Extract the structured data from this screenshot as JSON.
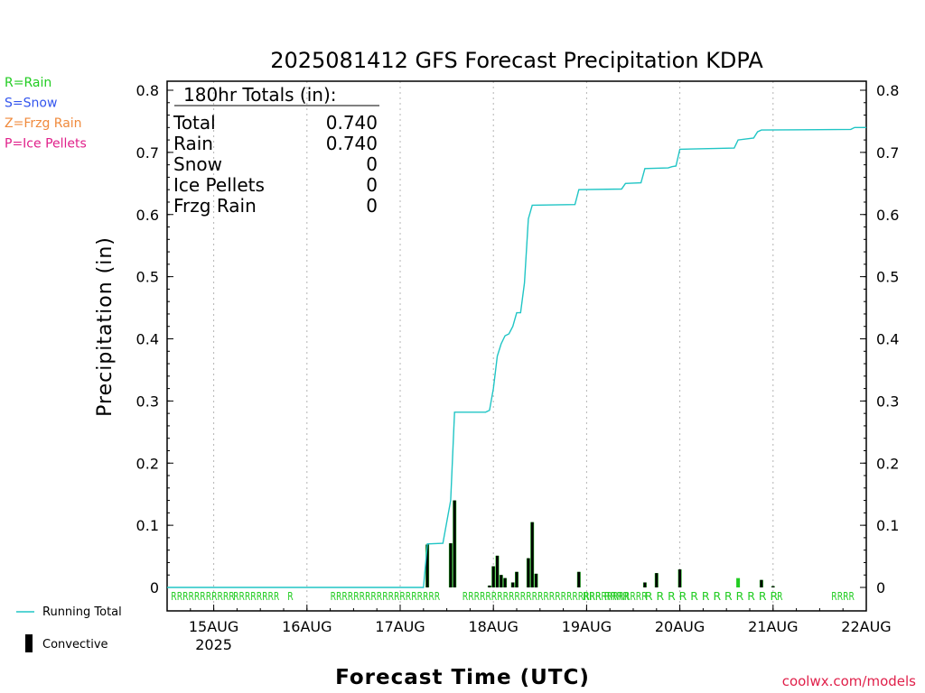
{
  "chart_data": {
    "type": "bar+line",
    "title": "2025081412 GFS Forecast Precipitation KDPA",
    "ylabel": "Precipitation (in)",
    "xlabel": "Forecast Time (UTC)",
    "ylim": [
      0,
      0.8
    ],
    "yticks": [
      0,
      0.1,
      0.2,
      0.3,
      0.4,
      0.5,
      0.6,
      0.7,
      0.8
    ],
    "ytick_labels": [
      "0",
      "0.1",
      "0.2",
      "0.3",
      "0.4",
      "0.5",
      "0.6",
      "0.7",
      "0.8"
    ],
    "x_start": "2025-08-14 12Z",
    "x_end": "2025-08-22 00Z",
    "xticks": [
      {
        "t": "2025-08-15 00Z",
        "label": "15AUG",
        "sub": "2025"
      },
      {
        "t": "2025-08-16 00Z",
        "label": "16AUG",
        "sub": ""
      },
      {
        "t": "2025-08-17 00Z",
        "label": "17AUG",
        "sub": ""
      },
      {
        "t": "2025-08-18 00Z",
        "label": "18AUG",
        "sub": ""
      },
      {
        "t": "2025-08-19 00Z",
        "label": "19AUG",
        "sub": ""
      },
      {
        "t": "2025-08-20 00Z",
        "label": "20AUG",
        "sub": ""
      },
      {
        "t": "2025-08-21 00Z",
        "label": "21AUG",
        "sub": ""
      },
      {
        "t": "2025-08-22 00Z",
        "label": "22AUG",
        "sub": ""
      }
    ],
    "grid": "vertical dotted",
    "totals": {
      "heading": "180hr Totals (in):",
      "rows": [
        {
          "label": "Total",
          "value": "0.740"
        },
        {
          "label": "Rain",
          "value": "0.740"
        },
        {
          "label": "Snow",
          "value": "0"
        },
        {
          "label": "Ice Pellets",
          "value": "0"
        },
        {
          "label": "Frzg Rain",
          "value": "0"
        }
      ]
    },
    "ptype_legend": [
      {
        "text": "R=Rain",
        "color": "#22cc22"
      },
      {
        "text": "S=Snow",
        "color": "#3355ee"
      },
      {
        "text": "Z=Frzg Rain",
        "color": "#f08a3c"
      },
      {
        "text": "P=Ice Pellets",
        "color": "#e0208a"
      }
    ],
    "series_legend": {
      "running_total": "Running Total",
      "convective": "Convective"
    },
    "credit": "coolwx.com/models",
    "running_total": [
      [
        "2025-08-14 12Z",
        0
      ],
      [
        "2025-08-17 06Z",
        0
      ],
      [
        "2025-08-17 07Z",
        0.07
      ],
      [
        "2025-08-17 11Z",
        0.071
      ],
      [
        "2025-08-17 13Z",
        0.14
      ],
      [
        "2025-08-17 14Z",
        0.282
      ],
      [
        "2025-08-17 22Z",
        0.282
      ],
      [
        "2025-08-17 23Z",
        0.285
      ],
      [
        "2025-08-18 00Z",
        0.32
      ],
      [
        "2025-08-18 01Z",
        0.372
      ],
      [
        "2025-08-18 02Z",
        0.392
      ],
      [
        "2025-08-18 03Z",
        0.405
      ],
      [
        "2025-08-18 04Z",
        0.408
      ],
      [
        "2025-08-18 05Z",
        0.42
      ],
      [
        "2025-08-18 06Z",
        0.442
      ],
      [
        "2025-08-18 07Z",
        0.442
      ],
      [
        "2025-08-18 08Z",
        0.49
      ],
      [
        "2025-08-18 09Z",
        0.593
      ],
      [
        "2025-08-18 10Z",
        0.615
      ],
      [
        "2025-08-18 21Z",
        0.616
      ],
      [
        "2025-08-18 22Z",
        0.64
      ],
      [
        "2025-08-19 09Z",
        0.641
      ],
      [
        "2025-08-19 10Z",
        0.65
      ],
      [
        "2025-08-19 14Z",
        0.651
      ],
      [
        "2025-08-19 15Z",
        0.674
      ],
      [
        "2025-08-19 21Z",
        0.675
      ],
      [
        "2025-08-19 22Z",
        0.677
      ],
      [
        "2025-08-19 23Z",
        0.678
      ],
      [
        "2025-08-20 00Z",
        0.705
      ],
      [
        "2025-08-20 14Z",
        0.707
      ],
      [
        "2025-08-20 15Z",
        0.72
      ],
      [
        "2025-08-20 19Z",
        0.723
      ],
      [
        "2025-08-20 20Z",
        0.733
      ],
      [
        "2025-08-20 21Z",
        0.736
      ],
      [
        "2025-08-21 20Z",
        0.737
      ],
      [
        "2025-08-21 21Z",
        0.74
      ],
      [
        "2025-08-22 00Z",
        0.74
      ]
    ],
    "bars": [
      {
        "t": "2025-08-17 07Z",
        "total": 0.069,
        "convective": 0.069
      },
      {
        "t": "2025-08-17 13Z",
        "total": 0.071,
        "convective": 0.071
      },
      {
        "t": "2025-08-17 14Z",
        "total": 0.14,
        "convective": 0.14
      },
      {
        "t": "2025-08-17 23Z",
        "total": 0.003,
        "convective": 0.003
      },
      {
        "t": "2025-08-18 00Z",
        "total": 0.034,
        "convective": 0.034
      },
      {
        "t": "2025-08-18 01Z",
        "total": 0.051,
        "convective": 0.051
      },
      {
        "t": "2025-08-18 02Z",
        "total": 0.02,
        "convective": 0.02
      },
      {
        "t": "2025-08-18 03Z",
        "total": 0.015,
        "convective": 0.015
      },
      {
        "t": "2025-08-18 05Z",
        "total": 0.008,
        "convective": 0.008
      },
      {
        "t": "2025-08-18 06Z",
        "total": 0.025,
        "convective": 0.025
      },
      {
        "t": "2025-08-18 09Z",
        "total": 0.047,
        "convective": 0.047
      },
      {
        "t": "2025-08-18 10Z",
        "total": 0.105,
        "convective": 0.105
      },
      {
        "t": "2025-08-18 11Z",
        "total": 0.022,
        "convective": 0.022
      },
      {
        "t": "2025-08-18 22Z",
        "total": 0.025,
        "convective": 0.025
      },
      {
        "t": "2025-08-19 15Z",
        "total": 0.008,
        "convective": 0.008
      },
      {
        "t": "2025-08-19 18Z",
        "total": 0.023,
        "convective": 0.023
      },
      {
        "t": "2025-08-20 00Z",
        "total": 0.029,
        "convective": 0.029
      },
      {
        "t": "2025-08-20 15Z",
        "total": 0.015,
        "convective": 0.0
      },
      {
        "t": "2025-08-20 21Z",
        "total": 0.012,
        "convective": 0.012
      },
      {
        "t": "2025-08-21 00Z",
        "total": 0.002,
        "convective": 0.002
      }
    ],
    "ptype_markers": {
      "color": "#22cc22",
      "marks": [
        {
          "t": "2025-08-14 13Z",
          "label": "RRRRRRRRRRR"
        },
        {
          "t": "2025-08-15 05Z",
          "label": "RRRRRRRR"
        },
        {
          "t": "2025-08-15 19Z",
          "label": "R"
        },
        {
          "t": "2025-08-16 06Z",
          "label": "RRRRRRRRRRRRRRRRRRR"
        },
        {
          "t": "2025-08-17 16Z",
          "label": "RRRRRRRRRRRRRRRRRRRRRRRRRRRRRRRR"
        },
        {
          "t": "2025-08-18 23Z",
          "label": "RRR RRRR"
        },
        {
          "t": "2025-08-19 15Z",
          "label": "R R R R R R R R R R R R"
        },
        {
          "t": "2025-08-21 01Z",
          "label": "R"
        },
        {
          "t": "2025-08-21 15Z",
          "label": "RRRR"
        }
      ]
    }
  }
}
